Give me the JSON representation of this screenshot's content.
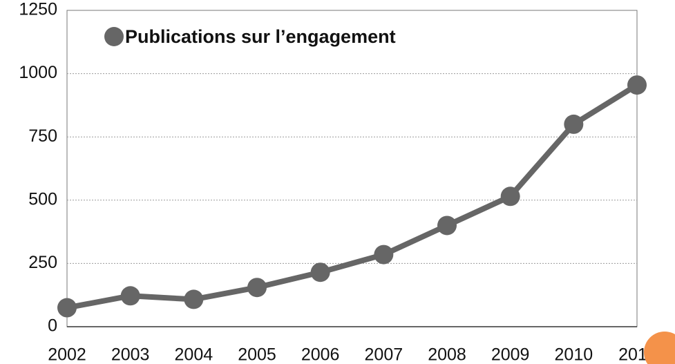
{
  "chart_data": {
    "type": "line",
    "x": [
      2002,
      2003,
      2004,
      2005,
      2006,
      2007,
      2008,
      2009,
      2010,
      2011
    ],
    "series": [
      {
        "name": "Publications sur l’engagement",
        "color": "#666666",
        "values": [
          75,
          122,
          108,
          155,
          215,
          285,
          400,
          515,
          800,
          955
        ]
      }
    ],
    "xlim": [
      2002,
      2011
    ],
    "xticks": [
      2002,
      2003,
      2004,
      2005,
      2006,
      2007,
      2008,
      2009,
      2010,
      2011
    ],
    "ylim": [
      0,
      1250
    ],
    "yticks": [
      0,
      250,
      500,
      750,
      1000,
      1250
    ],
    "grid": true,
    "legend": "top-left"
  }
}
